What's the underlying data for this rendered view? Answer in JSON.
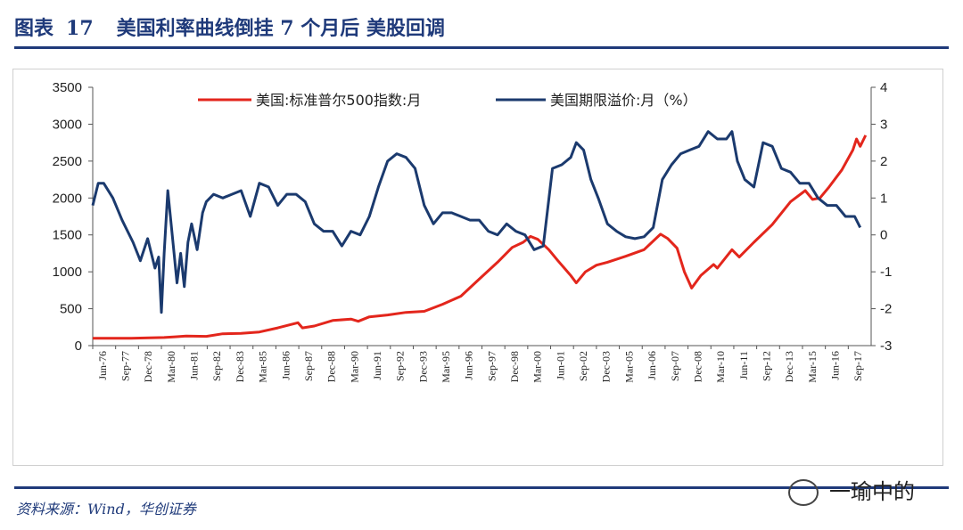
{
  "header": {
    "label": "图表",
    "number": "17",
    "title": "美国利率曲线倒挂 7 个月后 美股回调"
  },
  "footer": {
    "source": "资料来源：Wind，华创证券",
    "watermark": "一瑜中的"
  },
  "colors": {
    "brand": "#1f3a7a",
    "sp500": "#e3261c",
    "spread": "#1b3a6e"
  },
  "chart_data": {
    "type": "line",
    "title": "",
    "legend": [
      "美国:标准普尔500指数:月",
      "美国期限溢价:月（%）"
    ],
    "legend_position": "top",
    "x_tick_labels": [
      "Jun-76",
      "Sep-77",
      "Dec-78",
      "Mar-80",
      "Jun-81",
      "Sep-82",
      "Dec-83",
      "Mar-85",
      "Jun-86",
      "Sep-87",
      "Dec-88",
      "Mar-90",
      "Jun-91",
      "Sep-92",
      "Dec-93",
      "Mar-95",
      "Jun-96",
      "Sep-97",
      "Dec-98",
      "Mar-00",
      "Jun-01",
      "Sep-02",
      "Dec-03",
      "Mar-05",
      "Jun-06",
      "Sep-07",
      "Dec-08",
      "Mar-10",
      "Jun-11",
      "Sep-12",
      "Dec-13",
      "Mar-15",
      "Jun-16",
      "Sep-17"
    ],
    "x_range": [
      1976.4,
      2018.9
    ],
    "y_left": {
      "range": [
        0,
        3500
      ],
      "ticks": [
        0,
        500,
        1000,
        1500,
        2000,
        2500,
        3000,
        3500
      ]
    },
    "y_right": {
      "range": [
        -3,
        4
      ],
      "ticks": [
        -3,
        -2,
        -1,
        0,
        1,
        2,
        3,
        4
      ]
    },
    "series": [
      {
        "name": "美国:标准普尔500指数:月",
        "axis": "left",
        "x": [
          1976.4,
          1977.5,
          1978.5,
          1979.5,
          1980.3,
          1980.9,
          1981.5,
          1982.6,
          1983.5,
          1984.5,
          1985.5,
          1986.5,
          1987.6,
          1987.85,
          1988.5,
          1989.5,
          1990.5,
          1990.9,
          1991.5,
          1992.5,
          1993.5,
          1994.5,
          1995.5,
          1996.5,
          1997.5,
          1998.5,
          1999.3,
          1999.9,
          2000.3,
          2000.7,
          2001.3,
          2001.8,
          2002.5,
          2002.8,
          2003.3,
          2003.9,
          2004.5,
          2005.5,
          2006.5,
          2007.4,
          2007.8,
          2008.3,
          2008.7,
          2009.1,
          2009.6,
          2010.3,
          2010.5,
          2011.3,
          2011.7,
          2012.5,
          2013.5,
          2014.5,
          2015.3,
          2015.7,
          2016.1,
          2016.6,
          2017.3,
          2017.9,
          2018.1,
          2018.3,
          2018.6
        ],
        "y": [
          100,
          100,
          100,
          105,
          110,
          120,
          130,
          125,
          160,
          165,
          185,
          240,
          310,
          240,
          265,
          340,
          360,
          330,
          390,
          415,
          450,
          465,
          560,
          670,
          900,
          1130,
          1330,
          1400,
          1480,
          1440,
          1300,
          1150,
          950,
          850,
          1000,
          1090,
          1130,
          1210,
          1300,
          1510,
          1450,
          1320,
          1000,
          780,
          950,
          1100,
          1050,
          1300,
          1200,
          1400,
          1640,
          1950,
          2100,
          1980,
          2000,
          2150,
          2380,
          2650,
          2800,
          2700,
          2850
        ]
      },
      {
        "name": "美国期限溢价:月（%）",
        "axis": "right",
        "x": [
          1976.4,
          1976.7,
          1977.0,
          1977.5,
          1978.0,
          1978.6,
          1979.0,
          1979.4,
          1979.8,
          1980.0,
          1980.15,
          1980.3,
          1980.5,
          1980.8,
          1981.0,
          1981.2,
          1981.4,
          1981.6,
          1981.8,
          1982.1,
          1982.4,
          1982.6,
          1983.0,
          1983.5,
          1984.0,
          1984.5,
          1985.0,
          1985.5,
          1986.0,
          1986.5,
          1987.0,
          1987.5,
          1988.0,
          1988.5,
          1989.0,
          1989.5,
          1990.0,
          1990.5,
          1991.0,
          1991.5,
          1992.0,
          1992.5,
          1993.0,
          1993.5,
          1994.0,
          1994.5,
          1995.0,
          1995.5,
          1996.0,
          1996.5,
          1997.0,
          1997.5,
          1998.0,
          1998.5,
          1999.0,
          1999.5,
          2000.0,
          2000.5,
          2001.0,
          2001.5,
          2002.0,
          2002.5,
          2002.8,
          2003.2,
          2003.6,
          2004.0,
          2004.5,
          2005.0,
          2005.5,
          2006.0,
          2006.5,
          2007.0,
          2007.5,
          2008.0,
          2008.5,
          2009.0,
          2009.5,
          2010.0,
          2010.5,
          2011.0,
          2011.3,
          2011.6,
          2012.0,
          2012.5,
          2013.0,
          2013.5,
          2014.0,
          2014.5,
          2015.0,
          2015.5,
          2016.0,
          2016.5,
          2017.0,
          2017.5,
          2018.0,
          2018.3
        ],
        "y": [
          0.8,
          1.4,
          1.4,
          1.0,
          0.4,
          -0.2,
          -0.7,
          -0.1,
          -0.9,
          -0.6,
          -2.1,
          -0.5,
          1.2,
          -0.3,
          -1.3,
          -0.5,
          -1.4,
          -0.2,
          0.3,
          -0.4,
          0.6,
          0.9,
          1.1,
          1.0,
          1.1,
          1.2,
          0.5,
          1.4,
          1.3,
          0.8,
          1.1,
          1.1,
          0.9,
          0.3,
          0.1,
          0.1,
          -0.3,
          0.1,
          0.0,
          0.5,
          1.3,
          2.0,
          2.2,
          2.1,
          1.8,
          0.8,
          0.3,
          0.6,
          0.6,
          0.5,
          0.4,
          0.4,
          0.1,
          0.0,
          0.3,
          0.1,
          0.0,
          -0.4,
          -0.3,
          1.8,
          1.9,
          2.1,
          2.5,
          2.3,
          1.5,
          1.0,
          0.3,
          0.1,
          -0.05,
          -0.1,
          -0.05,
          0.2,
          1.5,
          1.9,
          2.2,
          2.3,
          2.4,
          2.8,
          2.6,
          2.6,
          2.8,
          2.0,
          1.5,
          1.3,
          2.5,
          2.4,
          1.8,
          1.7,
          1.4,
          1.4,
          1.0,
          0.8,
          0.8,
          0.5,
          0.5,
          0.2
        ]
      }
    ]
  }
}
